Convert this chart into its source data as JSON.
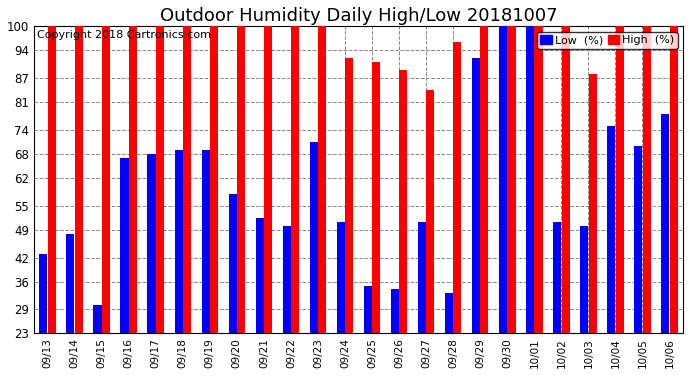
{
  "title": "Outdoor Humidity Daily High/Low 20181007",
  "copyright": "Copyright 2018 Cartronics.com",
  "categories": [
    "09/13",
    "09/14",
    "09/15",
    "09/16",
    "09/17",
    "09/18",
    "09/19",
    "09/20",
    "09/21",
    "09/22",
    "09/23",
    "09/24",
    "09/25",
    "09/26",
    "09/27",
    "09/28",
    "09/29",
    "09/30",
    "10/01",
    "10/02",
    "10/03",
    "10/04",
    "10/05",
    "10/06"
  ],
  "high": [
    100,
    100,
    100,
    100,
    100,
    100,
    100,
    100,
    100,
    100,
    100,
    92,
    91,
    89,
    84,
    96,
    100,
    100,
    100,
    100,
    88,
    100,
    100,
    100
  ],
  "low": [
    43,
    48,
    30,
    67,
    68,
    69,
    69,
    58,
    52,
    50,
    71,
    51,
    35,
    34,
    51,
    33,
    92,
    100,
    100,
    51,
    50,
    75,
    70,
    78
  ],
  "high_color": "#ff0000",
  "low_color": "#0000ff",
  "bg_color": "#ffffff",
  "grid_color": "#888888",
  "ylim_min": 23,
  "ylim_max": 100,
  "yticks": [
    23,
    29,
    36,
    42,
    49,
    55,
    62,
    68,
    74,
    81,
    87,
    94,
    100
  ],
  "title_fontsize": 13,
  "copyright_fontsize": 8,
  "legend_low_label": "Low  (%)",
  "legend_high_label": "High  (%)"
}
